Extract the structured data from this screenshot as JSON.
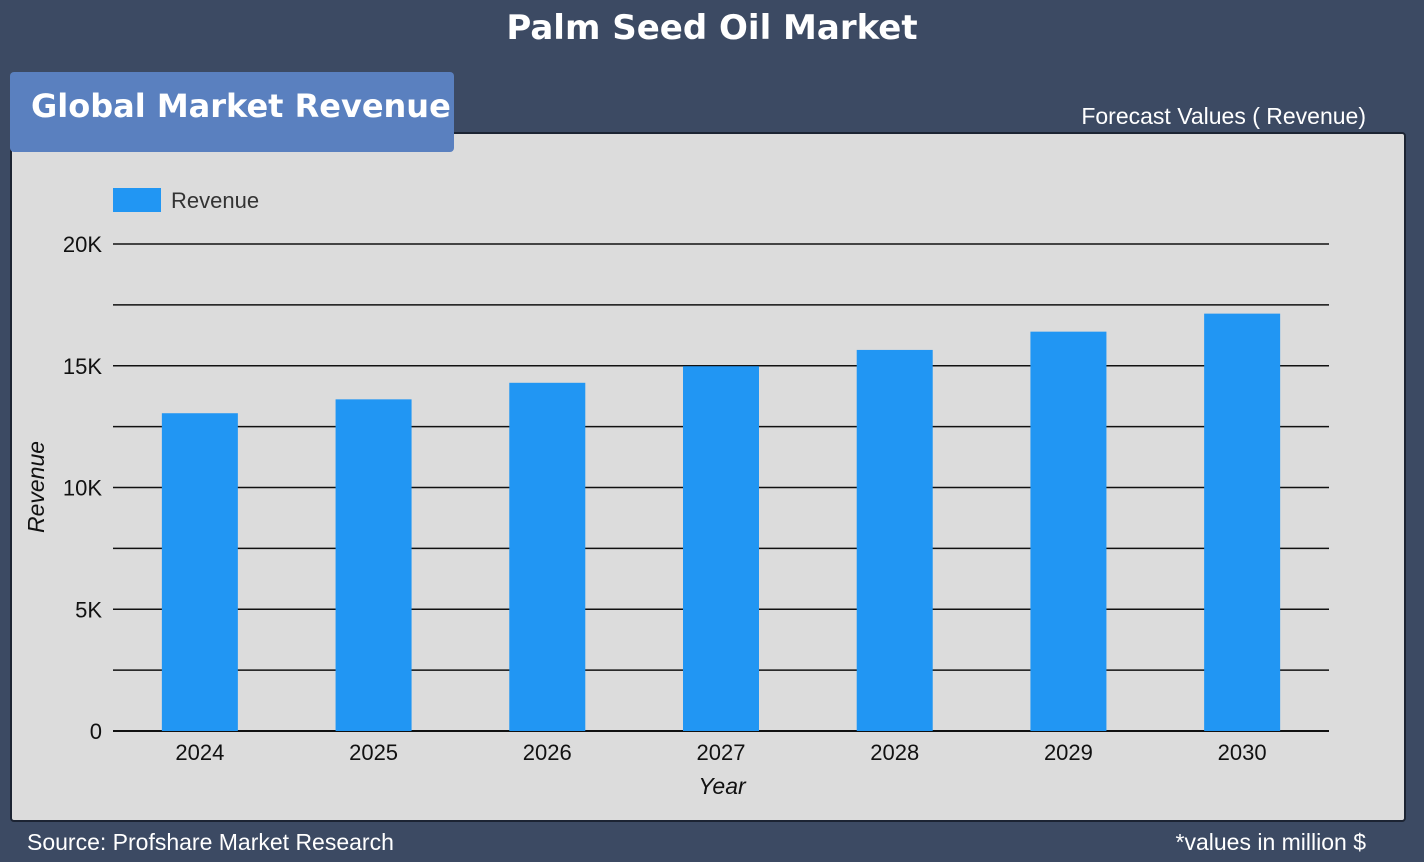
{
  "header": {
    "title": "Palm Seed Oil Market"
  },
  "section_tab": {
    "label": "Global Market Revenue"
  },
  "forecast_label": "Forecast Values ( Revenue)",
  "footer": {
    "source": "Source: Profshare Market Research",
    "units_note": "*values in million $"
  },
  "colors": {
    "background": "#3c4a63",
    "panel": "#dcdcdc",
    "tab": "#5a80bf",
    "bar": "#2196f3"
  },
  "chart_data": {
    "type": "bar",
    "title": "",
    "xlabel": "Year",
    "ylabel": "Revenue",
    "categories": [
      "2024",
      "2025",
      "2026",
      "2027",
      "2028",
      "2029",
      "2030"
    ],
    "series": [
      {
        "name": "Revenue",
        "values": [
          13050,
          13620,
          14300,
          14980,
          15650,
          16400,
          17140
        ]
      }
    ],
    "ylim": [
      0,
      20000
    ],
    "yticks": [
      0,
      5000,
      10000,
      15000,
      20000
    ],
    "ytick_labels": [
      "0",
      "5K",
      "10K",
      "15K",
      "20K"
    ],
    "minor_gridlines_step": 2500,
    "grid": true,
    "legend_position": "top-left"
  }
}
